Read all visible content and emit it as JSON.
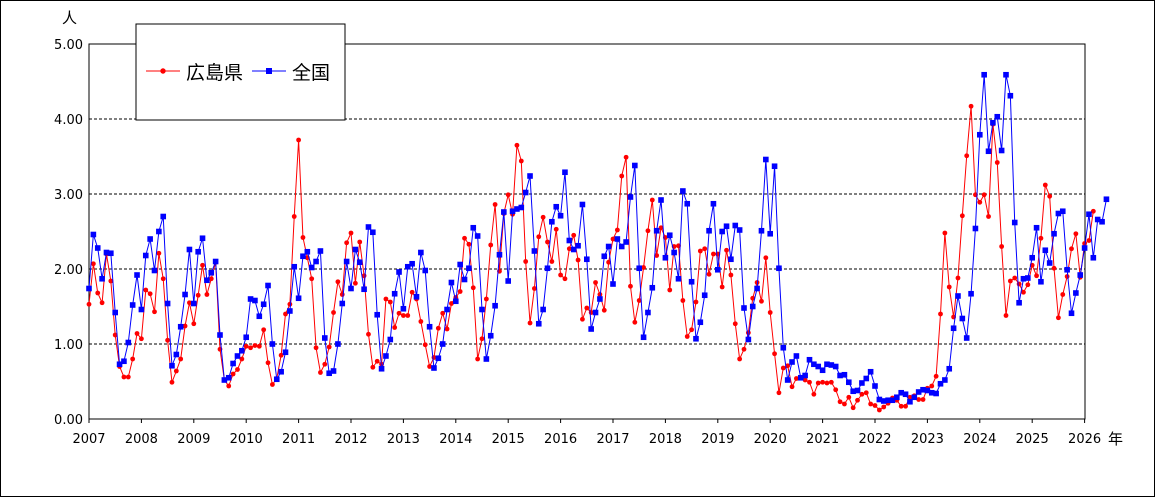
{
  "chart_data": {
    "type": "line",
    "title": "",
    "ylabel": "人",
    "xlabel": "年",
    "ylim": [
      0,
      5
    ],
    "yticks": [
      "0.00",
      "1.00",
      "2.00",
      "3.00",
      "4.00",
      "5.00"
    ],
    "xticks": [
      "2007",
      "2008",
      "2009",
      "2010",
      "2011",
      "2012",
      "2013",
      "2014",
      "2015",
      "2016",
      "2017",
      "2018",
      "2019",
      "2020",
      "2021",
      "2022",
      "2023",
      "2024",
      "2025",
      "2026"
    ],
    "grid": true,
    "legend_position": "top-left",
    "start": "2007-01",
    "series": [
      {
        "name": "広島県",
        "color": "#ff0000",
        "marker": "circle",
        "values": [
          1.53,
          2.07,
          1.68,
          1.55,
          2.2,
          1.84,
          1.12,
          0.7,
          0.56,
          0.56,
          0.8,
          1.14,
          1.07,
          1.72,
          1.67,
          1.43,
          2.21,
          1.87,
          1.05,
          0.49,
          0.64,
          0.8,
          1.24,
          1.55,
          1.27,
          1.65,
          2.05,
          1.66,
          1.87,
          2.09,
          0.93,
          0.52,
          0.44,
          0.6,
          0.66,
          0.8,
          0.97,
          0.95,
          0.98,
          0.97,
          1.19,
          0.75,
          0.46,
          0.54,
          0.85,
          1.4,
          1.53,
          2.7,
          3.72,
          2.42,
          2.15,
          1.87,
          0.95,
          0.62,
          0.73,
          0.96,
          1.42,
          1.83,
          1.66,
          2.35,
          2.48,
          1.81,
          2.36,
          1.91,
          1.13,
          0.69,
          0.77,
          0.73,
          1.6,
          1.56,
          1.22,
          1.41,
          1.38,
          1.38,
          1.69,
          1.6,
          1.3,
          0.99,
          0.7,
          0.82,
          1.21,
          1.41,
          1.2,
          1.54,
          1.62,
          1.7,
          2.41,
          2.33,
          1.75,
          0.8,
          1.07,
          1.6,
          2.32,
          2.86,
          1.97,
          2.74,
          2.99,
          2.73,
          3.65,
          3.44,
          2.1,
          1.28,
          1.74,
          2.43,
          2.69,
          2.36,
          2.1,
          2.53,
          1.92,
          1.87,
          2.27,
          2.45,
          2.12,
          1.33,
          1.48,
          1.42,
          1.82,
          1.66,
          1.45,
          2.09,
          2.4,
          2.52,
          3.24,
          3.49,
          1.77,
          1.29,
          1.58,
          2.02,
          2.51,
          2.92,
          2.18,
          2.55,
          2.42,
          1.72,
          2.3,
          2.31,
          1.58,
          1.1,
          1.19,
          1.56,
          2.24,
          2.27,
          1.93,
          2.2,
          2.2,
          1.76,
          2.25,
          1.92,
          1.27,
          0.8,
          0.93,
          1.15,
          1.61,
          1.82,
          1.57,
          2.15,
          1.42,
          0.87,
          0.35,
          0.68,
          0.71,
          0.43,
          0.54,
          0.55,
          0.52,
          0.49,
          0.33,
          0.48,
          0.49,
          0.48,
          0.49,
          0.39,
          0.23,
          0.2,
          0.29,
          0.15,
          0.25,
          0.33,
          0.35,
          0.2,
          0.18,
          0.12,
          0.16,
          0.21,
          0.28,
          0.25,
          0.17,
          0.17,
          0.29,
          0.31,
          0.26,
          0.26,
          0.41,
          0.44,
          0.57,
          1.4,
          2.48,
          1.76,
          1.36,
          1.88,
          2.71,
          3.51,
          4.17,
          2.99,
          2.89,
          2.99,
          2.7,
          3.93,
          3.42,
          2.3,
          1.38,
          1.84,
          1.88,
          1.8,
          1.69,
          1.79,
          2.05,
          1.91,
          2.41,
          3.12,
          2.97,
          2.01,
          1.35,
          1.66,
          1.9,
          2.27,
          2.47,
          1.89,
          2.34,
          2.38,
          2.77
        ]
      },
      {
        "name": "全国",
        "color": "#0000ff",
        "marker": "square",
        "values": [
          1.74,
          2.46,
          2.28,
          1.87,
          2.22,
          2.21,
          1.42,
          0.73,
          0.77,
          1.02,
          1.52,
          1.92,
          1.46,
          2.18,
          2.4,
          1.98,
          2.5,
          2.7,
          1.54,
          0.71,
          0.86,
          1.23,
          1.66,
          2.26,
          1.54,
          2.23,
          2.41,
          1.85,
          1.95,
          2.1,
          1.12,
          0.52,
          0.55,
          0.74,
          0.84,
          0.91,
          1.09,
          1.6,
          1.58,
          1.37,
          1.53,
          1.78,
          1.0,
          0.53,
          0.63,
          0.89,
          1.44,
          2.03,
          1.61,
          2.17,
          2.23,
          2.02,
          2.1,
          2.24,
          1.08,
          0.61,
          0.64,
          1.0,
          1.54,
          2.1,
          1.74,
          2.26,
          2.09,
          1.73,
          2.56,
          2.49,
          1.39,
          0.67,
          0.84,
          1.06,
          1.67,
          1.96,
          1.47,
          2.03,
          2.07,
          1.63,
          2.22,
          1.98,
          1.23,
          0.68,
          0.81,
          1.0,
          1.46,
          1.82,
          1.57,
          2.06,
          1.86,
          2.01,
          2.55,
          2.44,
          1.46,
          0.8,
          1.11,
          1.51,
          2.19,
          2.76,
          1.84,
          2.77,
          2.8,
          2.82,
          3.02,
          3.24,
          2.24,
          1.27,
          1.46,
          2.01,
          2.63,
          2.83,
          2.71,
          3.29,
          2.38,
          2.26,
          2.31,
          2.86,
          2.13,
          1.2,
          1.42,
          1.6,
          2.17,
          2.3,
          1.8,
          2.4,
          2.3,
          2.36,
          2.96,
          3.38,
          2.01,
          1.09,
          1.42,
          1.75,
          2.51,
          2.92,
          2.15,
          2.45,
          2.22,
          1.87,
          3.04,
          2.87,
          1.83,
          1.07,
          1.29,
          1.65,
          2.51,
          2.87,
          1.99,
          2.5,
          2.57,
          2.13,
          2.58,
          2.52,
          1.48,
          1.06,
          1.5,
          1.74,
          2.51,
          3.46,
          2.47,
          3.37,
          2.01,
          0.95,
          0.52,
          0.76,
          0.84,
          0.55,
          0.58,
          0.79,
          0.73,
          0.7,
          0.65,
          0.73,
          0.72,
          0.7,
          0.58,
          0.59,
          0.49,
          0.37,
          0.38,
          0.48,
          0.54,
          0.63,
          0.44,
          0.26,
          0.24,
          0.25,
          0.25,
          0.29,
          0.35,
          0.33,
          0.23,
          0.29,
          0.36,
          0.39,
          0.38,
          0.35,
          0.34,
          0.47,
          0.52,
          0.67,
          1.21,
          1.64,
          1.34,
          1.08,
          1.67,
          2.54,
          3.79,
          4.59,
          3.57,
          3.95,
          4.03,
          3.58,
          4.59,
          4.31,
          2.62,
          1.55,
          1.87,
          1.88,
          2.15,
          2.55,
          1.83,
          2.25,
          2.08,
          2.47,
          2.74,
          2.77,
          1.99,
          1.41,
          1.68,
          1.92,
          2.28,
          2.73,
          2.15,
          2.66,
          2.63,
          2.93
        ]
      }
    ]
  }
}
